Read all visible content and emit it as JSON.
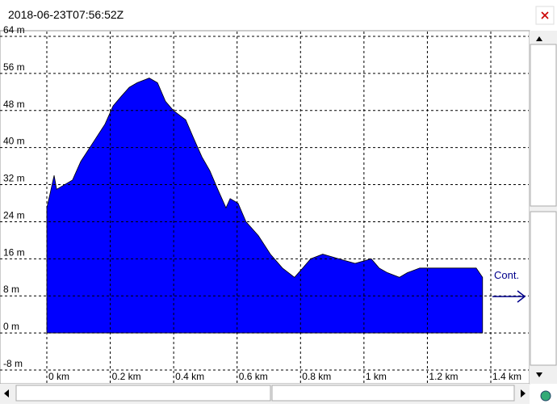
{
  "window": {
    "title": "2018-06-23T07:56:52Z"
  },
  "chart_data": {
    "type": "area",
    "x": [
      0,
      0.01,
      0.023,
      0.031,
      0.056,
      0.081,
      0.107,
      0.145,
      0.183,
      0.209,
      0.234,
      0.26,
      0.285,
      0.323,
      0.349,
      0.374,
      0.399,
      0.438,
      0.463,
      0.489,
      0.514,
      0.539,
      0.565,
      0.578,
      0.603,
      0.628,
      0.667,
      0.705,
      0.743,
      0.781,
      0.807,
      0.832,
      0.87,
      0.921,
      0.972,
      1.023,
      1.048,
      1.074,
      1.112,
      1.137,
      1.176,
      1.226,
      1.277,
      1.328,
      1.354,
      1.374
    ],
    "values": [
      27,
      30,
      34,
      31,
      32,
      33,
      37,
      41,
      45,
      49,
      51,
      53,
      54,
      55,
      54,
      50,
      48,
      46,
      42,
      38,
      35,
      31,
      27,
      29,
      28,
      24,
      21,
      17,
      14,
      12,
      14,
      16,
      17,
      16,
      15,
      16,
      14,
      13,
      12,
      13,
      14,
      14,
      14,
      14,
      14,
      12
    ],
    "color": "#0000ff",
    "xlim": [
      0,
      1.4
    ],
    "xticks": [
      {
        "value": 0,
        "label": "0 km"
      },
      {
        "value": 0.2,
        "label": "0.2 km"
      },
      {
        "value": 0.4,
        "label": "0.4 km"
      },
      {
        "value": 0.6,
        "label": "0.6 km"
      },
      {
        "value": 0.8,
        "label": "0.8 km"
      },
      {
        "value": 1,
        "label": "1 km"
      },
      {
        "value": 1.2,
        "label": "1.2 km"
      },
      {
        "value": 1.4,
        "label": "1.4 km"
      }
    ],
    "ylim": [
      -8,
      64
    ],
    "yticks": [
      {
        "value": -8,
        "label": "-8 m"
      },
      {
        "value": 0,
        "label": "0 m"
      },
      {
        "value": 8,
        "label": "8 m"
      },
      {
        "value": 16,
        "label": "16 m"
      },
      {
        "value": 24,
        "label": "24 m"
      },
      {
        "value": 32,
        "label": "32 m"
      },
      {
        "value": 40,
        "label": "40 m"
      },
      {
        "value": 48,
        "label": "48 m"
      },
      {
        "value": 56,
        "label": "56 m"
      },
      {
        "value": 64,
        "label": "64 m"
      }
    ],
    "grid": true,
    "annotation": "Cont."
  }
}
